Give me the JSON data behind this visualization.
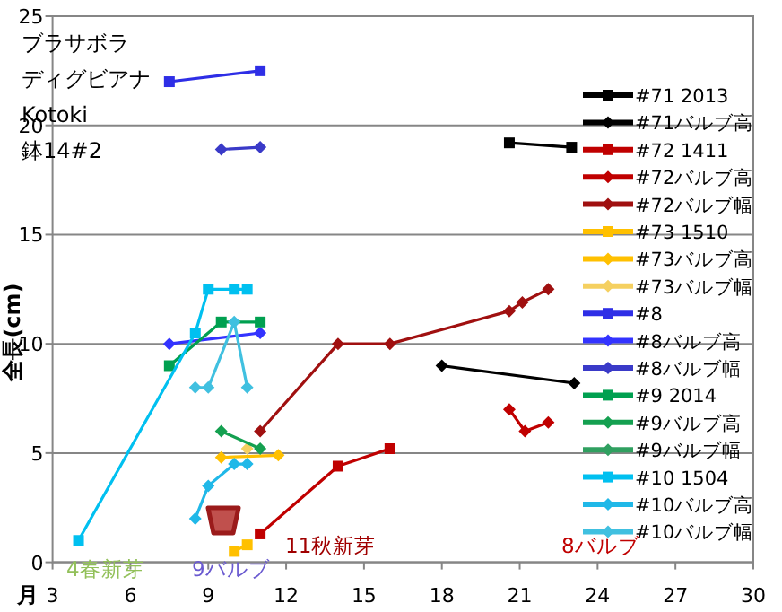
{
  "chart_data": {
    "type": "line",
    "xlabel": "月",
    "ylabel": "全長(cm)",
    "xlim": [
      3,
      30
    ],
    "xticks": [
      3,
      6,
      9,
      12,
      15,
      18,
      21,
      24,
      27,
      30
    ],
    "ylim": [
      0,
      25
    ],
    "yticks": [
      0,
      5,
      10,
      15,
      20,
      25
    ],
    "grid": "y",
    "legend": "right",
    "line_style": "solid",
    "annotations": [
      "ブラサボラ",
      "ディグビアナ",
      "Kotoki",
      "鉢14#2",
      "4春新芽",
      "9バルブ",
      "11秋新芽",
      "8バルブ"
    ],
    "series": [
      {
        "name": "#71 2013",
        "color": "#000000",
        "marker": "square",
        "x": [
          20.6,
          23
        ],
        "values": [
          19.2,
          19.0
        ]
      },
      {
        "name": "#71バルブ高",
        "color": "#000000",
        "marker": "diamond",
        "x": [
          18,
          23.1
        ],
        "values": [
          9.0,
          8.2
        ]
      },
      {
        "name": "#72 1411",
        "color": "#c00000",
        "marker": "square",
        "x": [
          11,
          14,
          16
        ],
        "values": [
          1.3,
          4.4,
          5.2
        ]
      },
      {
        "name": "#72バルブ高",
        "color": "#c00000",
        "marker": "diamond",
        "x": [
          20.6,
          21.2,
          22.1
        ],
        "values": [
          7.0,
          6.0,
          6.4
        ]
      },
      {
        "name": "#72バルブ幅",
        "color": "#a01010",
        "marker": "diamond",
        "x": [
          11,
          14,
          16,
          20.6,
          21.1,
          22.1
        ],
        "values": [
          6.0,
          10.0,
          10.0,
          11.5,
          11.9,
          12.5
        ]
      },
      {
        "name": "#73 1510",
        "color": "#ffc000",
        "marker": "square",
        "x": [
          10,
          10.5
        ],
        "values": [
          0.5,
          0.8
        ]
      },
      {
        "name": "#73バルブ高",
        "color": "#ffc000",
        "marker": "diamond",
        "x": [
          9.5,
          11.7
        ],
        "values": [
          4.8,
          4.9
        ]
      },
      {
        "name": "#73バルブ幅",
        "color": "#f5d060",
        "marker": "diamond",
        "x": [
          10.5
        ],
        "values": [
          5.2
        ]
      },
      {
        "name": "#8",
        "color": "#2e2ee6",
        "marker": "square",
        "x": [
          7.5,
          11
        ],
        "values": [
          22.0,
          22.5
        ]
      },
      {
        "name": "#8バルブ高",
        "color": "#3333ff",
        "marker": "diamond",
        "x": [
          7.5,
          11
        ],
        "values": [
          10.0,
          10.5
        ]
      },
      {
        "name": "#8バルブ幅",
        "color": "#3a3ac8",
        "marker": "diamond",
        "x": [
          9.5,
          11
        ],
        "values": [
          18.9,
          19.0
        ]
      },
      {
        "name": "#9 2014",
        "color": "#00a050",
        "marker": "square",
        "x": [
          7.5,
          9.5,
          11
        ],
        "values": [
          9.0,
          11.0,
          11.0
        ]
      },
      {
        "name": "#9バルブ高",
        "color": "#14a050",
        "marker": "diamond",
        "x": [
          9.5,
          11
        ],
        "values": [
          6.0,
          5.2
        ]
      },
      {
        "name": "#9バルブ幅",
        "color": "#30a060",
        "marker": "diamond"
      },
      {
        "name": "#10 1504",
        "color": "#00c0f0",
        "marker": "square",
        "x": [
          4,
          8.5,
          9,
          10,
          10.5
        ],
        "values": [
          1.0,
          10.5,
          12.5,
          12.5,
          12.5
        ]
      },
      {
        "name": "#10バルブ高",
        "color": "#20b8e8",
        "marker": "diamond",
        "x": [
          8.5,
          9,
          10,
          10.5
        ],
        "values": [
          2.0,
          3.5,
          4.5,
          4.5
        ]
      },
      {
        "name": "#10バルブ幅",
        "color": "#40c0e0",
        "marker": "diamond",
        "x": [
          8.5,
          9,
          10,
          10.5
        ],
        "values": [
          8.0,
          8.0,
          11.0,
          8.0
        ]
      }
    ]
  }
}
